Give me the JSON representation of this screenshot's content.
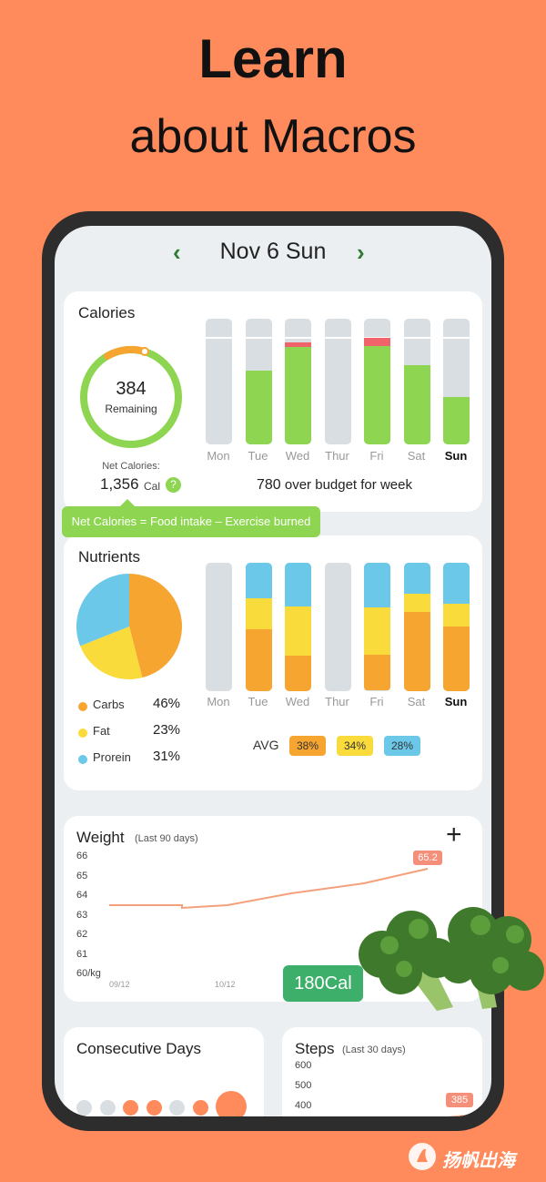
{
  "headline": {
    "line1": "Learn",
    "line2": "about Macros"
  },
  "date_nav": {
    "label": "Nov 6 Sun",
    "prev_glyph": "‹",
    "next_glyph": "›"
  },
  "calories": {
    "title": "Calories",
    "ring_value": "384",
    "ring_label": "Remaining",
    "net_label": "Net Calories:",
    "net_value": "1,356",
    "net_unit": "Cal",
    "help_glyph": "?",
    "days": [
      "Mon",
      "Tue",
      "Wed",
      "Thur",
      "Fri",
      "Sat",
      "Sun"
    ],
    "bars": [
      {
        "consumed": 0,
        "over": 0
      },
      {
        "consumed": 0.7,
        "over": 0
      },
      {
        "consumed": 0.92,
        "over": 0.08
      },
      {
        "consumed": 0,
        "over": 0
      },
      {
        "consumed": 0.93,
        "over": 0.15
      },
      {
        "consumed": 0.75,
        "over": 0
      },
      {
        "consumed": 0.45,
        "over": 0
      }
    ],
    "week_value": "780",
    "week_text": "over budget for week",
    "tooltip": "Net Calories = Food intake – Exercise burned"
  },
  "nutrients": {
    "title": "Nutrients",
    "legend": [
      {
        "name": "Carbs",
        "pct": "46%",
        "color": "#F6A531"
      },
      {
        "name": "Fat",
        "pct": "23%",
        "color": "#F9DB3C"
      },
      {
        "name": "Prorein",
        "pct": "31%",
        "color": "#6CC8E8"
      }
    ],
    "days": [
      "Mon",
      "Tue",
      "Wed",
      "Thur",
      "Fri",
      "Sat",
      "Sun"
    ],
    "bars": [
      null,
      {
        "carbs": 0.48,
        "fat": 0.24,
        "protein": 0.28
      },
      {
        "carbs": 0.28,
        "fat": 0.38,
        "protein": 0.34
      },
      null,
      {
        "carbs": 0.28,
        "fat": 0.37,
        "protein": 0.35
      },
      {
        "carbs": 0.62,
        "fat": 0.14,
        "protein": 0.24
      },
      {
        "carbs": 0.5,
        "fat": 0.18,
        "protein": 0.32
      }
    ],
    "avg_label": "AVG",
    "avg": [
      "38%",
      "34%",
      "28%"
    ]
  },
  "weight": {
    "title": "Weight",
    "subtitle": "(Last 90 days)",
    "add_glyph": "+",
    "y_ticks": [
      "66",
      "65",
      "64",
      "63",
      "62",
      "61",
      "60/kg"
    ],
    "x_ticks": [
      "09/12",
      "10/12"
    ],
    "current": "65.2",
    "calorie_badge": "180Cal"
  },
  "consecutive": {
    "title": "Consecutive Days",
    "dots": [
      "off",
      "off",
      "on",
      "on",
      "off",
      "on",
      "big"
    ]
  },
  "steps": {
    "title": "Steps",
    "subtitle": "(Last 30 days)",
    "y_ticks": [
      "600",
      "500",
      "400"
    ],
    "current": "385"
  },
  "watermark": "扬帆出海",
  "colors": {
    "background": "#FF8A5B",
    "green": "#8ED651",
    "over": "#F0636A",
    "empty_bar": "#D9DEE2",
    "carbs": "#F6A531",
    "fat": "#F9DB3C",
    "protein": "#6CC8E8",
    "weight_line": "#F4A07B",
    "badge": "#3EAF6A"
  }
}
